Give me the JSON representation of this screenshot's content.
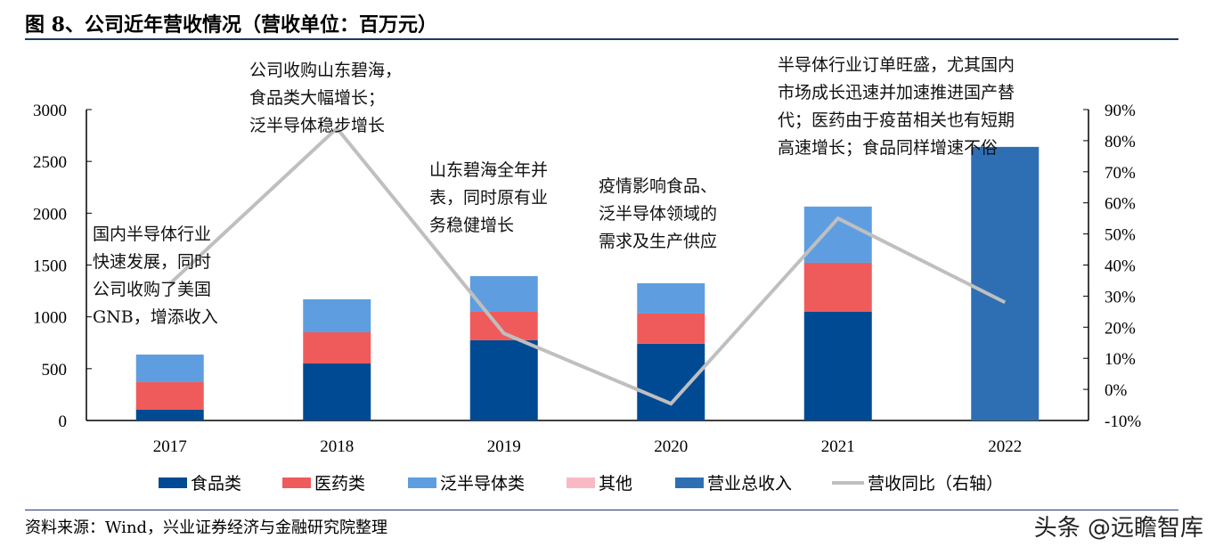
{
  "title": "图 8、公司近年营收情况（营收单位：百万元）",
  "source": "资料来源：Wind，兴业证券经济与金融研究院整理",
  "watermark": "头条 @远瞻智库",
  "annotations": [
    "国内半导体行业\n快速发展，同时\n公司收购了美国\nGNB，增添收入",
    "公司收购山东碧海，\n食品类大幅增长；\n泛半导体稳步增长",
    "山东碧海全年并\n表，同时原有业\n务稳健增长",
    "疫情影响食品、\n泛半导体领域的\n需求及生产供应",
    "半导体行业订单旺盛，尤其国内\n市场成长迅速并加速推进国产替\n代；医药由于疫苗相关也有短期\n高速增长；食品同样增速不俗"
  ],
  "chart_data": {
    "type": "bar",
    "categories": [
      "2017",
      "2018",
      "2019",
      "2020",
      "2021",
      "2022"
    ],
    "stacked_series": [
      {
        "name": "食品类",
        "color": "#004a93",
        "values": [
          103,
          550,
          774,
          740,
          1049,
          null
        ]
      },
      {
        "name": "医药类",
        "color": "#ef5b5b",
        "values": [
          267,
          301,
          275,
          292,
          473,
          null
        ]
      },
      {
        "name": "泛半导体类",
        "color": "#5e9ee0",
        "values": [
          266,
          318,
          344,
          292,
          542,
          null
        ]
      },
      {
        "name": "其他",
        "color": "#f9b9c4",
        "values": [
          0,
          0,
          0,
          0,
          0,
          null
        ]
      }
    ],
    "total_series": {
      "name": "营业总收入",
      "color": "#2e6fb3",
      "values": [
        null,
        null,
        null,
        null,
        null,
        2640
      ]
    },
    "line_series": {
      "name": "营收同比（右轴）",
      "color": "#bfbfbf",
      "axis": "right",
      "values": [
        34,
        84,
        18,
        -4.6,
        55,
        28
      ]
    },
    "left_axis": {
      "ylim": [
        0,
        3000
      ],
      "ticks": [
        0,
        500,
        1000,
        1500,
        2000,
        2500,
        3000
      ]
    },
    "right_axis": {
      "ylim": [
        -10,
        90
      ],
      "ticks": [
        "-10%",
        "0%",
        "10%",
        "20%",
        "30%",
        "40%",
        "50%",
        "60%",
        "70%",
        "80%",
        "90%"
      ]
    },
    "legend": "bottom",
    "grid": false
  }
}
